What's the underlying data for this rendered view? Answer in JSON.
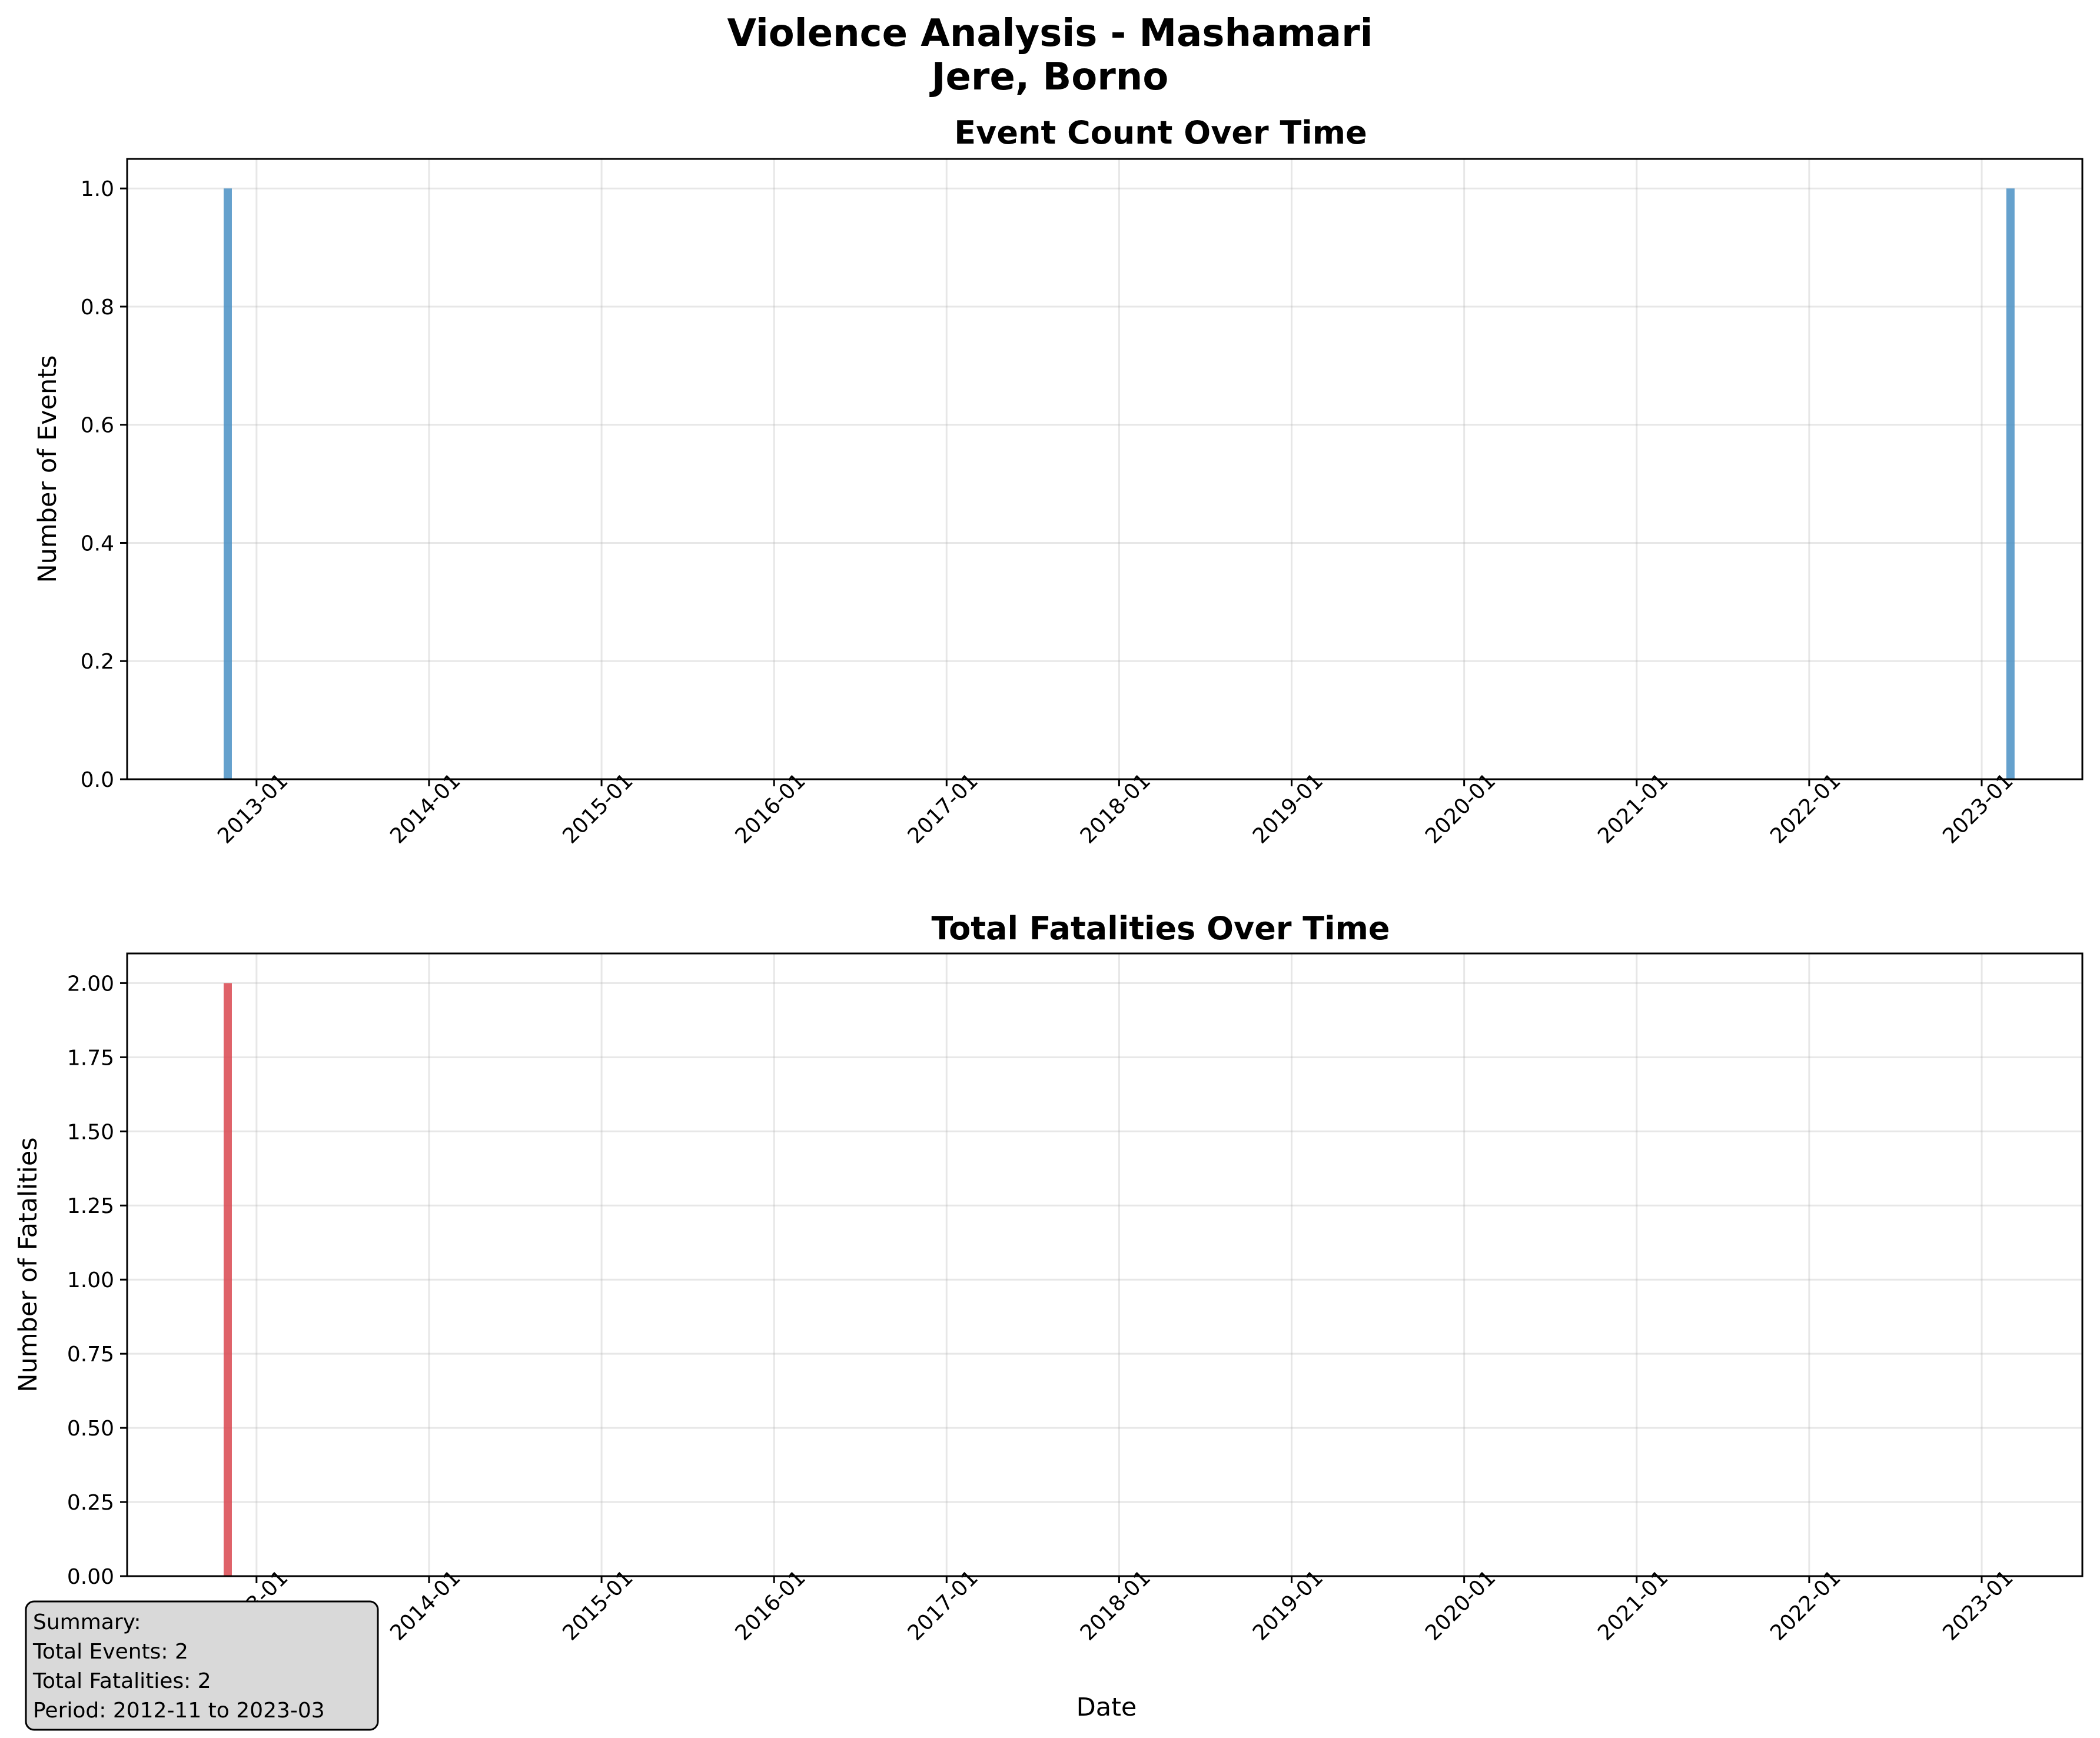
{
  "figure": {
    "title_line1": "Violence Analysis - Mashamari",
    "title_line2": "Jere, Borno"
  },
  "chart_data": [
    {
      "type": "bar",
      "title": "Event Count Over Time",
      "xlabel": "",
      "ylabel": "Number of Events",
      "x": [
        "2012-11",
        "2023-03"
      ],
      "values": [
        1,
        1
      ],
      "color": "#4a90c4",
      "ylim": [
        0,
        1.05
      ],
      "xlim": [
        "2012-04",
        "2023-08"
      ],
      "yticks": [
        "0.0",
        "0.2",
        "0.4",
        "0.6",
        "0.8",
        "1.0"
      ],
      "xticks": [
        "2013-01",
        "2014-01",
        "2015-01",
        "2016-01",
        "2017-01",
        "2018-01",
        "2019-01",
        "2020-01",
        "2021-01",
        "2022-01",
        "2023-01"
      ],
      "grid": true
    },
    {
      "type": "bar",
      "title": "Total Fatalities Over Time",
      "xlabel": "Date",
      "ylabel": "Number of Fatalities",
      "x": [
        "2012-11",
        "2023-03"
      ],
      "values": [
        2,
        0
      ],
      "color": "#d9474f",
      "ylim": [
        0,
        2.1
      ],
      "xlim": [
        "2012-04",
        "2023-08"
      ],
      "yticks": [
        "0.00",
        "0.25",
        "0.50",
        "0.75",
        "1.00",
        "1.25",
        "1.50",
        "1.75",
        "2.00"
      ],
      "xticks": [
        "2013-01",
        "2014-01",
        "2015-01",
        "2016-01",
        "2017-01",
        "2018-01",
        "2019-01",
        "2020-01",
        "2021-01",
        "2022-01",
        "2023-01"
      ],
      "grid": true
    }
  ],
  "summary": {
    "heading": "Summary:",
    "events": "Total Events: 2",
    "fatalities": "Total Fatalities: 2",
    "period": "Period: 2012-11 to 2023-03"
  }
}
